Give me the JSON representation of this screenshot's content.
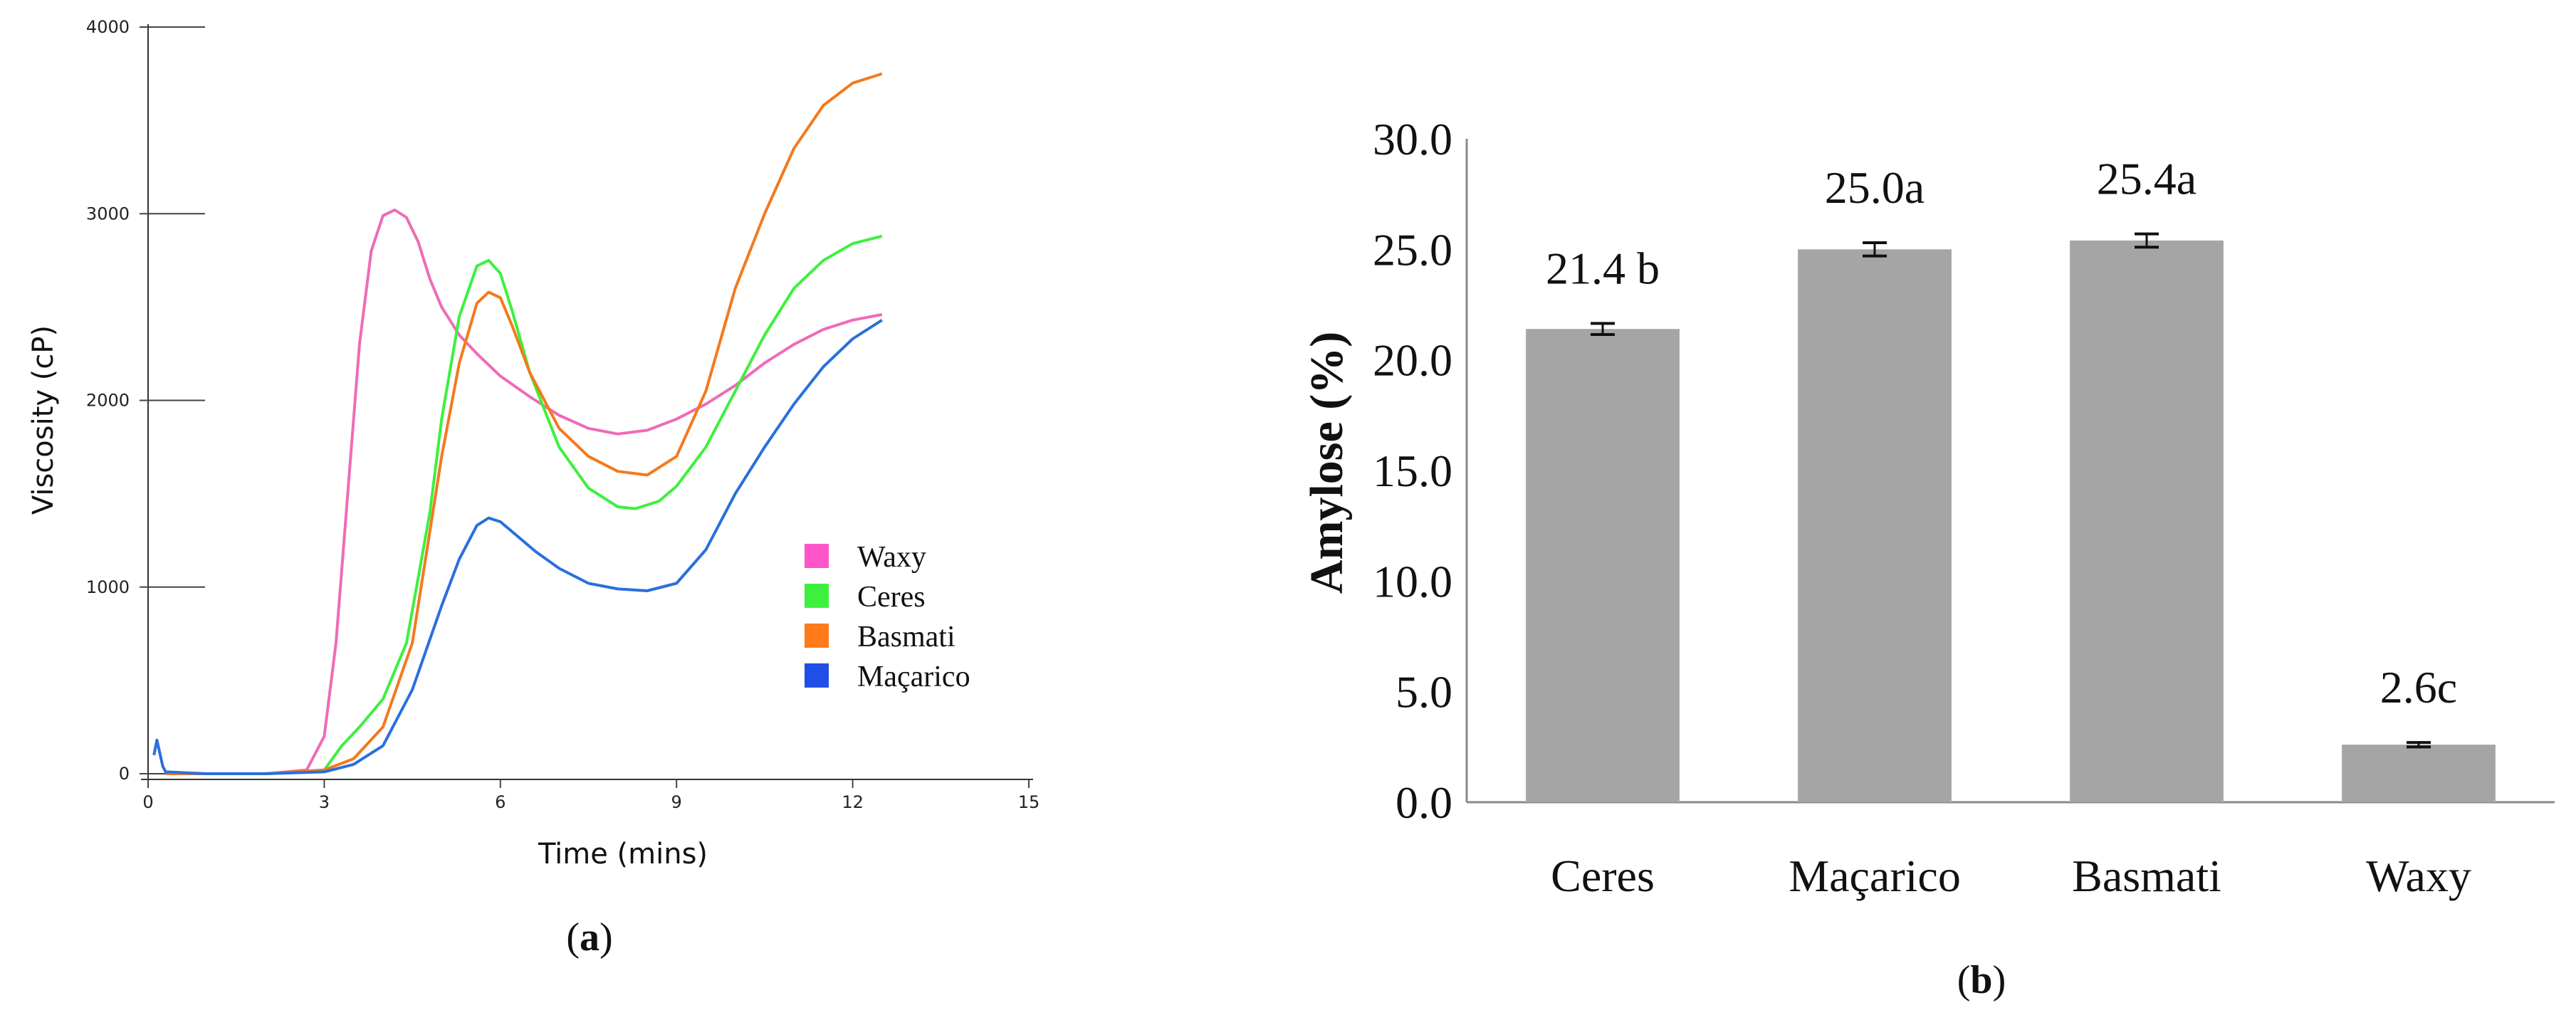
{
  "panels": [
    {
      "id": "a",
      "label_open": "(",
      "label": "a",
      "label_close": ")",
      "chart_data": {
        "type": "line",
        "title": "",
        "xlabel": "Time (mins)",
        "ylabel": "Viscosity (cP)",
        "xlim": [
          0,
          15
        ],
        "ylim": [
          0,
          4000
        ],
        "xticks": [
          0,
          3,
          6,
          9,
          12,
          15
        ],
        "yticks": [
          0,
          1000,
          2000,
          3000,
          4000
        ],
        "grid": false,
        "legend_position": "right",
        "series": [
          {
            "name": "Waxy",
            "color": "#ff55c8",
            "line_color": "#ef6bb6",
            "x": [
              0.3,
              1,
              2,
              2.7,
              3,
              3.2,
              3.4,
              3.6,
              3.8,
              4.0,
              4.2,
              4.4,
              4.6,
              4.8,
              5.0,
              5.3,
              5.6,
              6.0,
              6.5,
              7.0,
              7.5,
              8.0,
              8.5,
              9.0,
              9.5,
              10.0,
              10.5,
              11.0,
              11.5,
              12.0,
              12.5
            ],
            "y": [
              0,
              0,
              0,
              20,
              200,
              700,
              1500,
              2300,
              2800,
              2990,
              3020,
              2980,
              2850,
              2650,
              2500,
              2350,
              2250,
              2130,
              2020,
              1920,
              1850,
              1820,
              1840,
              1900,
              1980,
              2080,
              2200,
              2300,
              2380,
              2430,
              2460
            ]
          },
          {
            "name": "Ceres",
            "color": "#3ef03e",
            "line_color": "#3ef03e",
            "x": [
              0.3,
              1,
              2,
              3,
              3.3,
              3.6,
              4.0,
              4.4,
              4.8,
              5.0,
              5.3,
              5.6,
              5.8,
              6.0,
              6.2,
              6.5,
              7.0,
              7.5,
              8.0,
              8.3,
              8.7,
              9.0,
              9.5,
              10.0,
              10.5,
              11.0,
              11.5,
              12.0,
              12.5
            ],
            "y": [
              0,
              0,
              0,
              20,
              150,
              250,
              400,
              700,
              1400,
              1900,
              2450,
              2720,
              2750,
              2680,
              2480,
              2150,
              1750,
              1530,
              1430,
              1420,
              1460,
              1540,
              1750,
              2050,
              2350,
              2600,
              2750,
              2840,
              2880
            ]
          },
          {
            "name": "Basmati",
            "color": "#ff7a1a",
            "line_color": "#f27a1f",
            "x": [
              0.3,
              1,
              2,
              3,
              3.5,
              4.0,
              4.5,
              5.0,
              5.3,
              5.6,
              5.8,
              6.0,
              6.2,
              6.5,
              7.0,
              7.5,
              8.0,
              8.5,
              9.0,
              9.5,
              10.0,
              10.5,
              11.0,
              11.5,
              12.0,
              12.5
            ],
            "y": [
              0,
              0,
              0,
              20,
              80,
              250,
              700,
              1700,
              2200,
              2520,
              2580,
              2550,
              2400,
              2150,
              1850,
              1700,
              1620,
              1600,
              1700,
              2050,
              2600,
              3000,
              3350,
              3580,
              3700,
              3750
            ]
          },
          {
            "name": "Maçarico",
            "color": "#1f4fe6",
            "line_color": "#2a6fdc",
            "x": [
              0.1,
              0.15,
              0.2,
              0.25,
              0.3,
              1,
              2,
              3,
              3.5,
              4.0,
              4.5,
              5.0,
              5.3,
              5.6,
              5.8,
              6.0,
              6.3,
              6.6,
              7.0,
              7.5,
              8.0,
              8.5,
              9.0,
              9.5,
              10.0,
              10.5,
              11.0,
              11.5,
              12.0,
              12.5
            ],
            "y": [
              100,
              180,
              110,
              40,
              10,
              0,
              0,
              10,
              50,
              150,
              450,
              900,
              1150,
              1330,
              1370,
              1350,
              1270,
              1190,
              1100,
              1020,
              990,
              980,
              1020,
              1200,
              1500,
              1750,
              1980,
              2180,
              2330,
              2430
            ]
          }
        ]
      }
    },
    {
      "id": "b",
      "label_open": "(",
      "label": "b",
      "label_close": ")",
      "chart_data": {
        "type": "bar",
        "title": "",
        "xlabel": "",
        "ylabel": "Amylose (%)",
        "ylim": [
          0,
          30
        ],
        "yticks": [
          "0.0",
          "5.0",
          "10.0",
          "15.0",
          "20.0",
          "25.0",
          "30.0"
        ],
        "grid": false,
        "bar_color": "#a5a5a5",
        "categories": [
          "Ceres",
          "Maçarico",
          "Basmati",
          "Waxy"
        ],
        "values": [
          21.4,
          25.0,
          25.4,
          2.6
        ],
        "errors": [
          0.25,
          0.3,
          0.3,
          0.1
        ],
        "data_labels": [
          "21.4 b",
          "25.0a",
          "25.4a",
          "2.6c"
        ]
      }
    }
  ]
}
